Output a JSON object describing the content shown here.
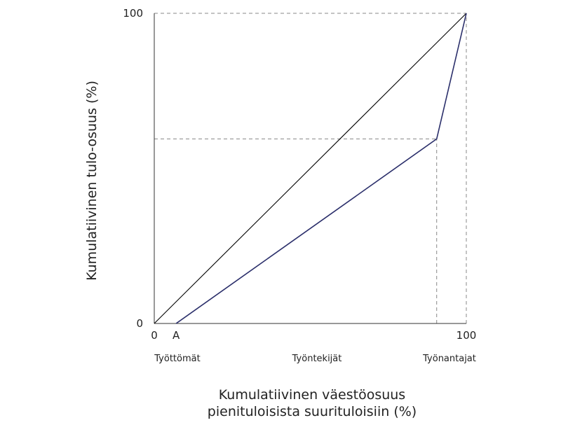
{
  "chart_data": {
    "type": "line",
    "xlabel_line1": "Kumulatiivinen väestöosuus",
    "xlabel_line2": "pienituloisista suurituloisiin (%)",
    "ylabel": "Kumulatiivinen tulo-osuus (%)",
    "xlim": [
      0,
      100
    ],
    "ylim": [
      0,
      100
    ],
    "x_ticks": [
      "0",
      "A",
      "100"
    ],
    "y_ticks": [
      "0",
      "100"
    ],
    "groups": [
      "Työttömät",
      "Työntekijät",
      "Työnantajat"
    ],
    "series": [
      {
        "role": "equality-line",
        "color": "#000000",
        "points": [
          [
            0,
            0
          ],
          [
            100,
            100
          ]
        ]
      },
      {
        "role": "lorenz-curve",
        "color": "#2b2f6b",
        "points": [
          [
            7,
            0
          ],
          [
            90.5,
            59.5
          ],
          [
            100,
            100
          ]
        ]
      }
    ],
    "reference_lines": [
      {
        "kind": "horizontal",
        "y": 100,
        "x_from": 0,
        "x_to": 100
      },
      {
        "kind": "vertical",
        "x": 100,
        "y_from": 0,
        "y_to": 100
      },
      {
        "kind": "horizontal",
        "y": 59.5,
        "x_from": 0,
        "x_to": 90.5
      },
      {
        "kind": "vertical",
        "x": 90.5,
        "y_from": 0,
        "y_to": 59.5
      }
    ],
    "x_tick_positions": [
      0,
      7,
      100
    ],
    "y_tick_positions": [
      0,
      100
    ],
    "group_positions": [
      7,
      53,
      100
    ],
    "grid": false,
    "legend": "none"
  }
}
